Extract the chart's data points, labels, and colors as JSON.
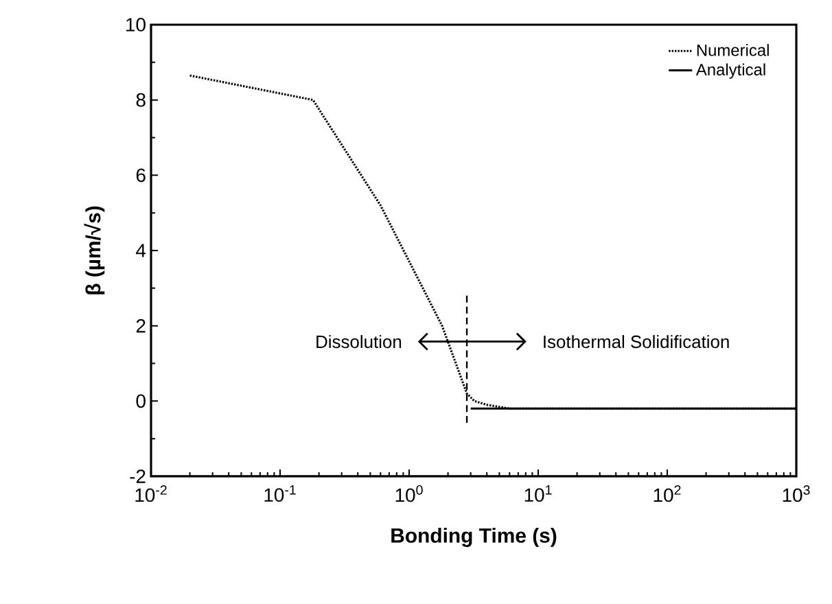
{
  "chart_data": {
    "type": "line",
    "xlabel": "Bonding Time (s)",
    "ylabel": "β (µm/√s)",
    "log": "x",
    "xlim": [
      0.01,
      1000
    ],
    "ylim": [
      -2,
      10
    ],
    "xticks": [
      {
        "value": 0.01,
        "label": "10$^{-2}$"
      },
      {
        "value": 0.1,
        "label": "10$^{-1}$"
      },
      {
        "value": 1,
        "label": "10$^{0}$"
      },
      {
        "value": 10,
        "label": "10$^{1}$"
      },
      {
        "value": 100,
        "label": "10$^{2}$"
      },
      {
        "value": 1000,
        "label": "10$^{3}$"
      }
    ],
    "yticks": [
      -2,
      0,
      2,
      4,
      6,
      8,
      10
    ],
    "grid": false,
    "legend": "top right",
    "marker": "none",
    "annotations": [
      "Dissolution",
      "Isothermal Solidification"
    ],
    "series": [
      {
        "name": "Numerical",
        "color": "#000000",
        "line_style": "dotted",
        "x": [
          0.02,
          0.18,
          0.6,
          1.8,
          2.8,
          3.2,
          4,
          6,
          1000
        ],
        "values": [
          8.65,
          8.0,
          5.2,
          2.0,
          0.2,
          0.0,
          -0.1,
          -0.2,
          -0.2
        ]
      },
      {
        "name": "Analytical",
        "color": "#000000",
        "line_style": "solid",
        "x": [
          3,
          1000
        ],
        "values": [
          -0.2,
          -0.2
        ]
      },
      {
        "color": "#000000",
        "line_style": "dashed",
        "x": [
          2.8,
          2.8
        ],
        "values": [
          2.8,
          -0.6
        ]
      }
    ]
  }
}
